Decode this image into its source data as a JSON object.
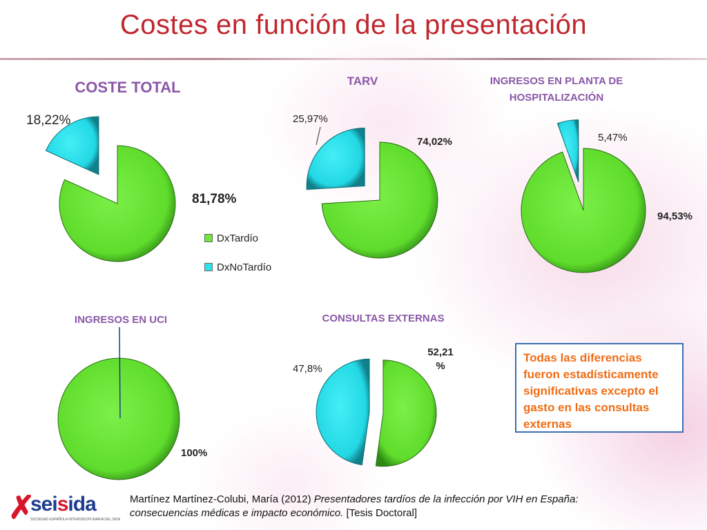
{
  "page_title": "Costes en función de la presentación",
  "colors": {
    "green": "#6ee83a",
    "cyan": "#2fe3ee",
    "title_red": "#c0262d",
    "chart_title_purple": "#8a57a8",
    "note_orange": "#ef6c14",
    "note_border": "#3b6fb6"
  },
  "legend": {
    "items": [
      "DxTardío",
      "DxNoTardío"
    ]
  },
  "chart_data": [
    {
      "type": "pie",
      "title": "COSTE TOTAL",
      "categories": [
        "DxTardío",
        "DxNoTardío"
      ],
      "values": [
        81.78,
        18.22
      ],
      "labels": [
        "81,78%",
        "18,22%"
      ]
    },
    {
      "type": "pie",
      "title": "TARV",
      "categories": [
        "DxTardío",
        "DxNoTardío"
      ],
      "values": [
        74.02,
        25.97
      ],
      "labels": [
        "74,02%",
        "25,97%"
      ]
    },
    {
      "type": "pie",
      "title": "INGRESOS EN PLANTA DE HOSPITALIZACIÓN",
      "categories": [
        "DxTardío",
        "DxNoTardío"
      ],
      "values": [
        94.53,
        5.47
      ],
      "labels": [
        "94,53%",
        "5,47%"
      ]
    },
    {
      "type": "pie",
      "title": "INGRESOS EN UCI",
      "categories": [
        "DxTardío",
        "DxNoTardío"
      ],
      "values": [
        100,
        0
      ],
      "labels": [
        "100%",
        ""
      ]
    },
    {
      "type": "pie",
      "title": "CONSULTAS EXTERNAS",
      "categories": [
        "DxTardío",
        "DxNoTardío"
      ],
      "values": [
        52.21,
        47.8
      ],
      "labels": [
        "52,21 %",
        "47,8%"
      ]
    }
  ],
  "note": "Todas las diferencias fueron estadísticamente significativas excepto el gasto en las consultas externas",
  "logo": {
    "name": "seisida",
    "subtitle": "SOCIEDAD ESPAÑOLA INTERDISCIPLINARIA DEL SIDA"
  },
  "citation": {
    "author": "Martínez Martínez-Colubi, María (2012) ",
    "work": "Presentadores tardíos de la infección por VIH en España: consecuencias médicas e impacto económico.",
    "type": " [Tesis Doctoral]"
  }
}
